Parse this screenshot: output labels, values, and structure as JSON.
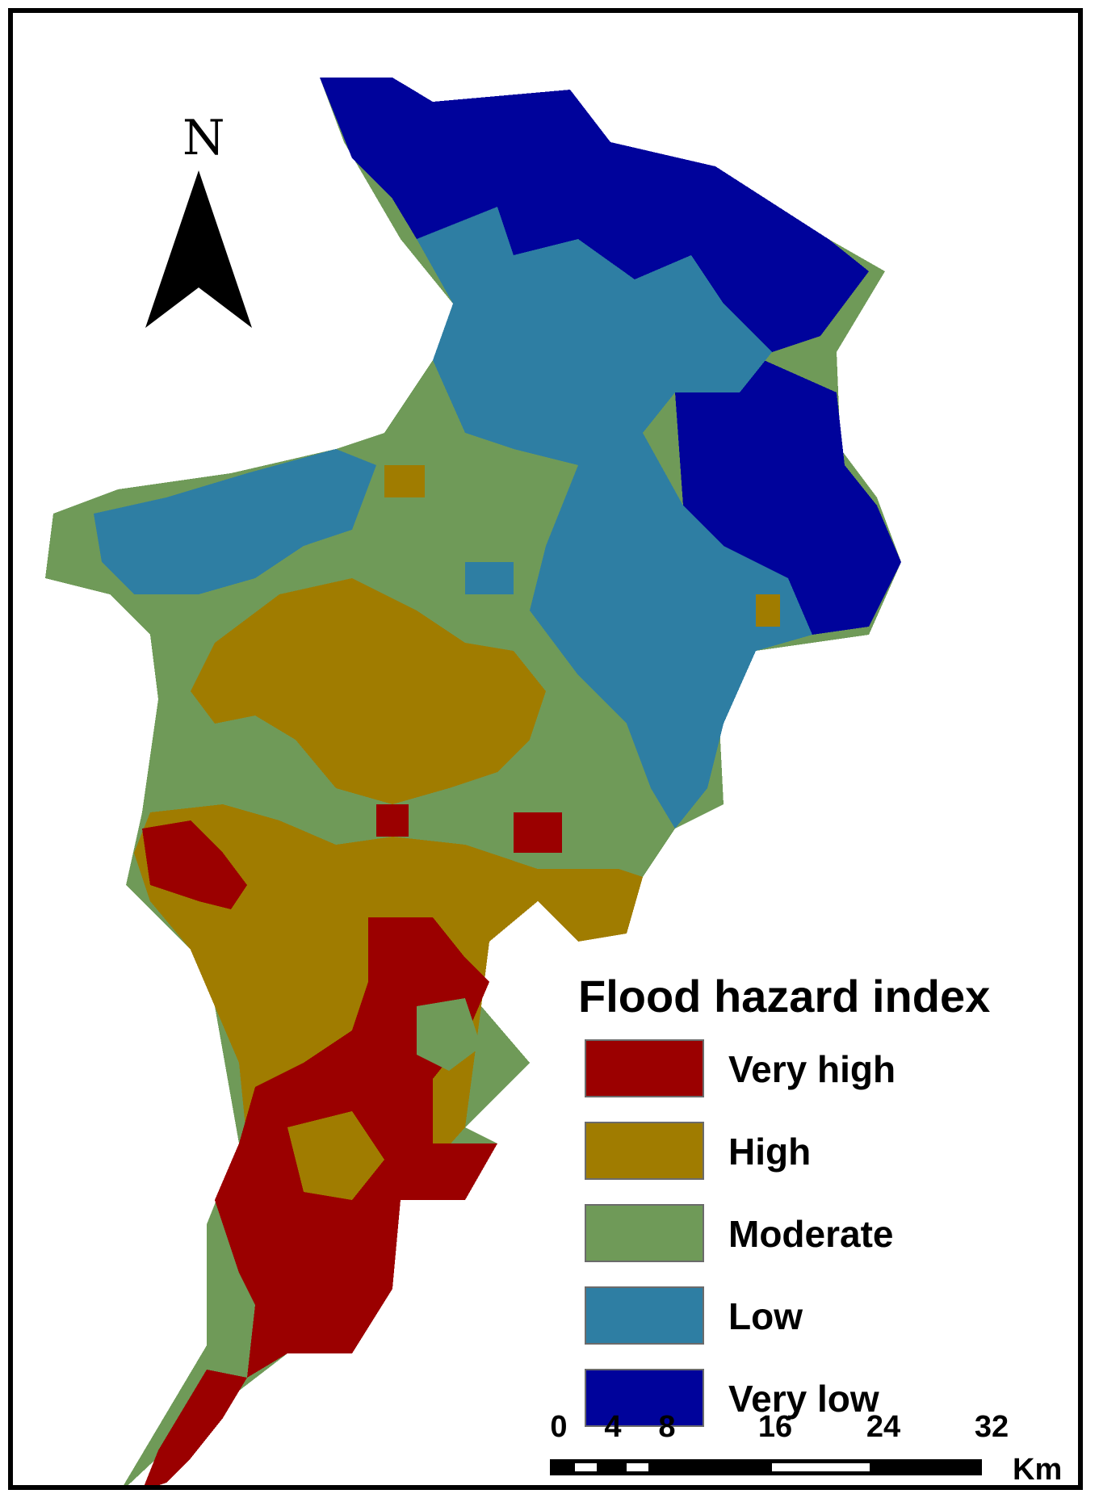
{
  "north_arrow": {
    "letter": "N",
    "icon": "north-arrow-icon"
  },
  "legend": {
    "title": "Flood hazard index",
    "items": [
      {
        "label": "Very high",
        "color": "#9b0000"
      },
      {
        "label": "High",
        "color": "#a07c00"
      },
      {
        "label": "Moderate",
        "color": "#6f9a58"
      },
      {
        "label": "Low",
        "color": "#2e7ea3"
      },
      {
        "label": "Very low",
        "color": "#00039b"
      }
    ]
  },
  "scale_bar": {
    "ticks": [
      "0",
      "4",
      "8",
      "16",
      "24",
      "32"
    ],
    "unit": "Km"
  },
  "colors": {
    "very_high": "#9b0000",
    "high": "#a07c00",
    "moderate": "#6f9a58",
    "low": "#2e7ea3",
    "very_low": "#00039b",
    "frame": "#000000"
  }
}
